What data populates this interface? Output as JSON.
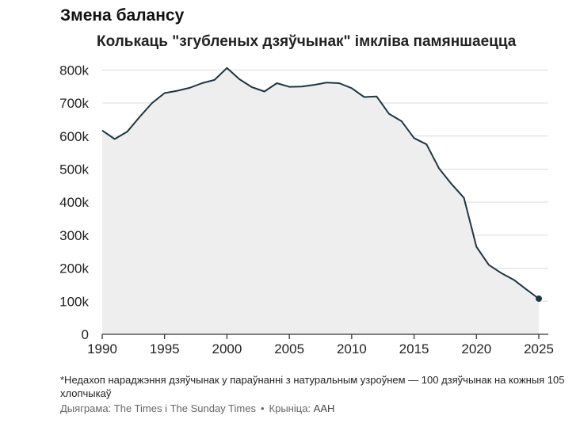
{
  "heading": "Змена балансу",
  "chart_data": {
    "type": "area",
    "title": "Колькаць \"згубленых дзяўчынак\" імкліва памяншаецца",
    "xlabel": "",
    "ylabel": "",
    "x": [
      1990,
      1991,
      1992,
      1993,
      1994,
      1995,
      1996,
      1997,
      1998,
      1999,
      2000,
      2001,
      2002,
      2003,
      2004,
      2005,
      2006,
      2007,
      2008,
      2009,
      2010,
      2011,
      2012,
      2013,
      2014,
      2015,
      2016,
      2017,
      2018,
      2019,
      2020,
      2021,
      2022,
      2023,
      2024,
      2025
    ],
    "series": [
      {
        "values": [
          617000,
          591000,
          613000,
          658000,
          700000,
          730000,
          737000,
          746000,
          760000,
          770000,
          806000,
          772000,
          748000,
          735000,
          760000,
          749000,
          750000,
          755000,
          762000,
          760000,
          745000,
          718000,
          720000,
          667000,
          645000,
          594000,
          575000,
          502000,
          455000,
          413000,
          265000,
          210000,
          185000,
          165000,
          136000,
          108000
        ]
      }
    ],
    "xticks": [
      "1990",
      "1995",
      "2000",
      "2005",
      "2010",
      "2015",
      "2020",
      "2025"
    ],
    "yticks": [
      "0",
      "100k",
      "200k",
      "300k",
      "400k",
      "500k",
      "600k",
      "700k",
      "800k"
    ],
    "xlim": [
      1990,
      2025
    ],
    "ylim": [
      0,
      820000
    ],
    "grid": true,
    "colors": {
      "line": "#1f3543",
      "fill": "#eeeeee",
      "grid": "#dcdcdc",
      "axis": "#333333"
    }
  },
  "footnote": "*Недахоп нараджэння дзяўчынак у параўнанні з натуральным узроўнем — 100 дзяўчынак на кожныя 105 хлопчыкаў",
  "credits": {
    "chart": "Дыяграма: The Times і The Sunday Times",
    "separator": "•",
    "source_label": "Крыніца:",
    "source": "AAH"
  }
}
